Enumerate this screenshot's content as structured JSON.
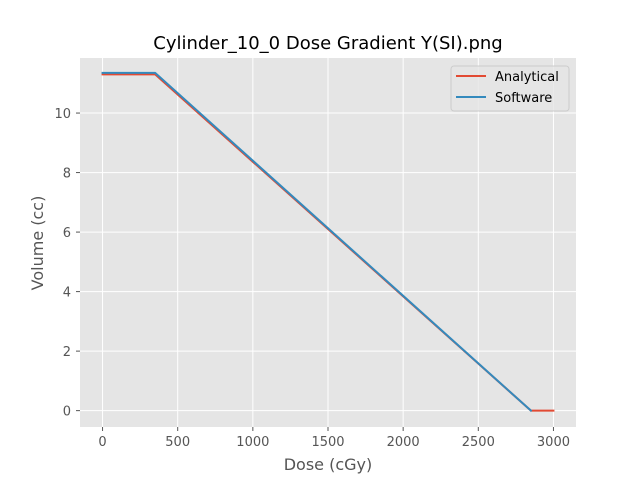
{
  "chart_data": {
    "type": "line",
    "title": "Cylinder_10_0 Dose Gradient Y(SI).png",
    "xlabel": "Dose (cGy)",
    "ylabel": "Volume (cc)",
    "xlim": [
      -150,
      3150
    ],
    "ylim": [
      -0.55,
      11.85
    ],
    "xticks": [
      0,
      500,
      1000,
      1500,
      2000,
      2500,
      3000
    ],
    "yticks": [
      0,
      2,
      4,
      6,
      8,
      10
    ],
    "xtick_labels": [
      "0",
      "500",
      "1000",
      "1500",
      "2000",
      "2500",
      "3000"
    ],
    "ytick_labels": [
      "0",
      "2",
      "4",
      "6",
      "8",
      "10"
    ],
    "grid": true,
    "legend_position": "top-right",
    "series": [
      {
        "name": "Analytical",
        "color": "#E24A33",
        "x": [
          0,
          350,
          2850,
          3000
        ],
        "y": [
          11.3,
          11.3,
          0,
          0
        ]
      },
      {
        "name": "Software",
        "color": "#348ABD",
        "x": [
          0,
          350,
          2850
        ],
        "y": [
          11.35,
          11.35,
          0
        ]
      }
    ]
  },
  "colors": {
    "plot_background": "#E5E5E5",
    "grid": "#FFFFFF",
    "text": "#555555"
  }
}
